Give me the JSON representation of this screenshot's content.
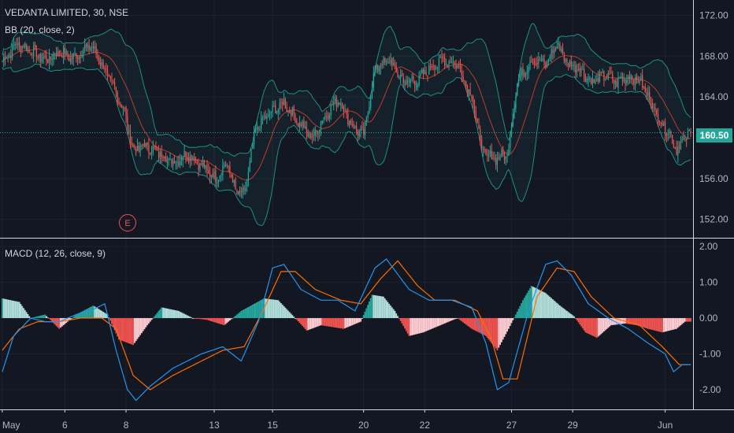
{
  "header": {
    "title": "VEDANTA LIMITED, 30, NSE",
    "bb_label": "BB (20, close, 2)",
    "macd_label": "MACD (12, 26, close, 9)"
  },
  "last_price": "160.50",
  "event_marker": "E",
  "colors": {
    "background": "#131722",
    "up": "#26a69a",
    "down": "#ef5350",
    "band": "#1e8f86",
    "basis": "#c0392b",
    "macd_line": "#2196f3",
    "signal_line": "#ff6d00",
    "hist_up_strong": "#26a69a",
    "hist_up_weak": "#b2dfdb",
    "hist_down_strong": "#ef5350",
    "hist_down_weak": "#ffcdd2"
  },
  "chart_data": [
    {
      "type": "candlestick",
      "title": "VEDANTA LIMITED, 30, NSE",
      "ylim": [
        150.2,
        173.5
      ],
      "yticks": [
        "172.00",
        "168.00",
        "164.00",
        "160.00",
        "156.00",
        "152.00"
      ],
      "xticks": [
        "May",
        "6",
        "8",
        "13",
        "15",
        "20",
        "22",
        "27",
        "29",
        "Jun"
      ],
      "overlay": "BB (20, close, 2)",
      "anchors": [
        [
          0,
          167.5
        ],
        [
          10,
          169.2
        ],
        [
          20,
          168.6
        ],
        [
          30,
          167.6
        ],
        [
          40,
          168.4
        ],
        [
          50,
          167.8
        ],
        [
          62,
          169.1
        ],
        [
          70,
          167.2
        ],
        [
          78,
          165.0
        ],
        [
          86,
          162.5
        ],
        [
          92,
          158.8
        ],
        [
          100,
          159.2
        ],
        [
          110,
          158.5
        ],
        [
          120,
          157.6
        ],
        [
          130,
          158.4
        ],
        [
          140,
          157.3
        ],
        [
          150,
          156.0
        ],
        [
          158,
          157.5
        ],
        [
          164,
          154.8
        ],
        [
          170,
          154.3
        ],
        [
          178,
          160.8
        ],
        [
          188,
          162.4
        ],
        [
          198,
          163.4
        ],
        [
          208,
          161.6
        ],
        [
          218,
          160.0
        ],
        [
          228,
          162.4
        ],
        [
          236,
          163.8
        ],
        [
          246,
          161.2
        ],
        [
          254,
          160.2
        ],
        [
          262,
          166.8
        ],
        [
          272,
          167.6
        ],
        [
          282,
          165.5
        ],
        [
          292,
          165.6
        ],
        [
          300,
          166.8
        ],
        [
          310,
          167.6
        ],
        [
          320,
          167.2
        ],
        [
          330,
          164.0
        ],
        [
          338,
          158.5
        ],
        [
          346,
          158.0
        ],
        [
          355,
          158.3
        ],
        [
          362,
          165.5
        ],
        [
          372,
          167.7
        ],
        [
          382,
          167.2
        ],
        [
          390,
          169.2
        ],
        [
          398,
          167.2
        ],
        [
          405,
          166.9
        ],
        [
          414,
          165.5
        ],
        [
          424,
          166.1
        ],
        [
          432,
          165.5
        ],
        [
          440,
          166.0
        ],
        [
          448,
          165.6
        ],
        [
          456,
          163.6
        ],
        [
          462,
          161.7
        ],
        [
          468,
          160.6
        ],
        [
          474,
          158.9
        ],
        [
          478,
          159.6
        ],
        [
          484,
          160.5
        ]
      ],
      "ohlc_reference": "Jun 160.50",
      "event_marker": "E"
    },
    {
      "type": "line+bar",
      "title": "MACD (12, 26, close, 9)",
      "ylim": [
        -2.55,
        2.2
      ],
      "yticks": [
        "2.00",
        "1.00",
        "0.00",
        "-1.00",
        "-2.00"
      ],
      "series": [
        {
          "name": "MACD",
          "values": [
            [
              0,
              -1.5
            ],
            [
              8,
              -0.5
            ],
            [
              20,
              0.0
            ],
            [
              30,
              -0.1
            ],
            [
              40,
              -0.1
            ],
            [
              52,
              0.1
            ],
            [
              62,
              0.2
            ],
            [
              72,
              0.4
            ],
            [
              80,
              -0.9
            ],
            [
              88,
              -2.0
            ],
            [
              94,
              -2.3
            ],
            [
              104,
              -1.9
            ],
            [
              120,
              -1.4
            ],
            [
              140,
              -1.0
            ],
            [
              155,
              -0.8
            ],
            [
              168,
              -1.2
            ],
            [
              180,
              -0.1
            ],
            [
              190,
              1.4
            ],
            [
              198,
              1.5
            ],
            [
              210,
              0.8
            ],
            [
              224,
              0.5
            ],
            [
              236,
              0.5
            ],
            [
              248,
              0.2
            ],
            [
              262,
              1.4
            ],
            [
              270,
              1.65
            ],
            [
              286,
              0.8
            ],
            [
              300,
              0.5
            ],
            [
              316,
              0.5
            ],
            [
              330,
              0.3
            ],
            [
              340,
              -0.7
            ],
            [
              348,
              -2.0
            ],
            [
              356,
              -1.8
            ],
            [
              370,
              0.2
            ],
            [
              382,
              1.5
            ],
            [
              390,
              1.6
            ],
            [
              400,
              1.2
            ],
            [
              412,
              0.4
            ],
            [
              426,
              0.0
            ],
            [
              440,
              -0.3
            ],
            [
              454,
              -0.7
            ],
            [
              466,
              -1.0
            ],
            [
              472,
              -1.5
            ],
            [
              478,
              -1.3
            ]
          ]
        },
        {
          "name": "Signal",
          "values": [
            [
              0,
              -0.9
            ],
            [
              12,
              -0.3
            ],
            [
              25,
              -0.1
            ],
            [
              40,
              -0.1
            ],
            [
              55,
              0.0
            ],
            [
              70,
              0.0
            ],
            [
              80,
              -0.3
            ],
            [
              92,
              -1.6
            ],
            [
              104,
              -2.0
            ],
            [
              120,
              -1.6
            ],
            [
              140,
              -1.2
            ],
            [
              155,
              -0.9
            ],
            [
              170,
              -0.8
            ],
            [
              182,
              0.1
            ],
            [
              196,
              1.3
            ],
            [
              206,
              1.3
            ],
            [
              220,
              0.8
            ],
            [
              238,
              0.5
            ],
            [
              252,
              0.4
            ],
            [
              266,
              1.1
            ],
            [
              278,
              1.6
            ],
            [
              292,
              0.9
            ],
            [
              304,
              0.5
            ],
            [
              318,
              0.5
            ],
            [
              334,
              0.2
            ],
            [
              344,
              -0.6
            ],
            [
              352,
              -1.7
            ],
            [
              362,
              -1.7
            ],
            [
              376,
              0.6
            ],
            [
              390,
              1.4
            ],
            [
              402,
              1.3
            ],
            [
              414,
              0.6
            ],
            [
              430,
              0.0
            ],
            [
              448,
              -0.2
            ],
            [
              464,
              -0.8
            ],
            [
              476,
              -1.3
            ],
            [
              480,
              -1.3
            ]
          ]
        },
        {
          "name": "Histogram",
          "values": [
            [
              0,
              0.55
            ],
            [
              12,
              0.45
            ],
            [
              20,
              0.0
            ],
            [
              30,
              0.1
            ],
            [
              40,
              -0.3
            ],
            [
              52,
              0.1
            ],
            [
              64,
              0.35
            ],
            [
              74,
              0.1
            ],
            [
              82,
              -0.6
            ],
            [
              92,
              -0.75
            ],
            [
              102,
              -0.2
            ],
            [
              112,
              0.3
            ],
            [
              124,
              0.2
            ],
            [
              134,
              0.0
            ],
            [
              144,
              -0.05
            ],
            [
              156,
              -0.2
            ],
            [
              168,
              0.2
            ],
            [
              184,
              0.55
            ],
            [
              194,
              0.5
            ],
            [
              206,
              0.0
            ],
            [
              214,
              -0.35
            ],
            [
              224,
              -0.2
            ],
            [
              240,
              -0.3
            ],
            [
              252,
              -0.1
            ],
            [
              260,
              0.65
            ],
            [
              268,
              0.6
            ],
            [
              276,
              0.2
            ],
            [
              286,
              -0.5
            ],
            [
              296,
              -0.4
            ],
            [
              308,
              -0.2
            ],
            [
              320,
              0.0
            ],
            [
              330,
              -0.3
            ],
            [
              340,
              -0.5
            ],
            [
              348,
              -0.9
            ],
            [
              356,
              -0.3
            ],
            [
              366,
              0.5
            ],
            [
              372,
              0.9
            ],
            [
              382,
              0.7
            ],
            [
              392,
              0.35
            ],
            [
              402,
              0.05
            ],
            [
              410,
              -0.4
            ],
            [
              418,
              -0.55
            ],
            [
              428,
              -0.2
            ],
            [
              438,
              -0.15
            ],
            [
              446,
              -0.2
            ],
            [
              454,
              -0.3
            ],
            [
              464,
              -0.4
            ],
            [
              474,
              -0.3
            ],
            [
              480,
              -0.1
            ]
          ]
        }
      ]
    }
  ]
}
